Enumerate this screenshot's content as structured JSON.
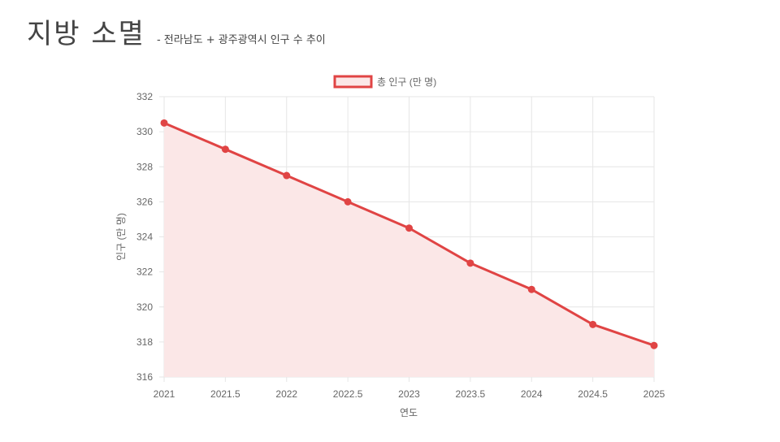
{
  "header": {
    "title": "지방 소멸",
    "subtitle": "- 전라남도 + 광주광역시 인구 수 추이"
  },
  "chart_data": {
    "type": "line",
    "title": "",
    "legend": {
      "position": "top",
      "entries": [
        "총 인구 (만 명)"
      ]
    },
    "series": [
      {
        "name": "총 인구 (만 명)",
        "x": [
          2021,
          2021.5,
          2022,
          2022.5,
          2023,
          2023.5,
          2024,
          2024.5,
          2025
        ],
        "values": [
          330.5,
          329,
          327.5,
          326,
          324.5,
          322.5,
          321,
          319,
          317.8
        ],
        "fill": true,
        "color": "#e04444",
        "fill_color": "#fbe7e7"
      }
    ],
    "xlabel": "연도",
    "ylabel": "인구 (만 명)",
    "xlim": [
      2021,
      2025
    ],
    "ylim": [
      316,
      332
    ],
    "x_ticks": [
      "2021",
      "2021.5",
      "2022",
      "2022.5",
      "2023",
      "2023.5",
      "2024",
      "2024.5",
      "2025"
    ],
    "y_ticks": [
      "316",
      "318",
      "320",
      "322",
      "324",
      "326",
      "328",
      "330",
      "332"
    ],
    "grid": true
  }
}
